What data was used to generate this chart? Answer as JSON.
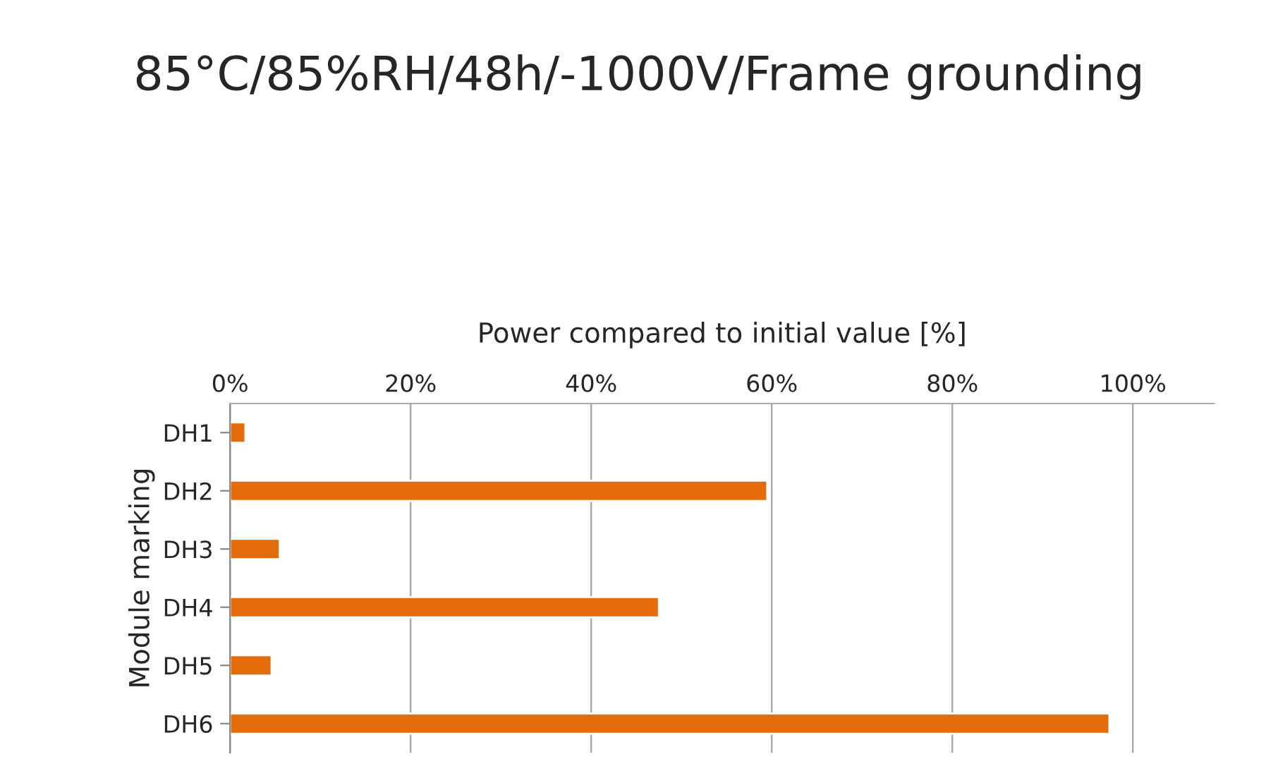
{
  "chart_data": {
    "type": "bar",
    "orientation": "horizontal",
    "title": "85°C/85%RH/48h/-1000V/Frame grounding",
    "xlabel": "Power compared to initial value [%]",
    "ylabel": "Module marking",
    "categories": [
      "DH1",
      "DH2",
      "DH3",
      "DH4",
      "DH5",
      "DH6"
    ],
    "values": [
      1.7,
      59.5,
      5.5,
      47.5,
      4.6,
      97.4
    ],
    "color": "#e46c0a",
    "xlim": [
      0,
      109
    ],
    "xticks": [
      {
        "value": 0,
        "label": "0%"
      },
      {
        "value": 20,
        "label": "20%"
      },
      {
        "value": 40,
        "label": "40%"
      },
      {
        "value": 60,
        "label": "60%"
      },
      {
        "value": 80,
        "label": "80%"
      },
      {
        "value": 100,
        "label": "100%"
      }
    ],
    "grid": "x",
    "legend": false
  }
}
